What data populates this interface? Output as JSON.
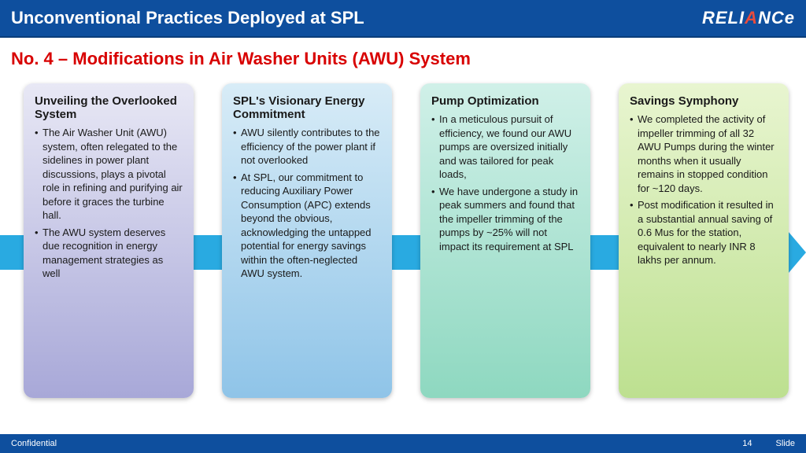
{
  "header": {
    "title": "Unconventional Practices Deployed at SPL",
    "logo_text_pre": "RELI",
    "logo_accent": "A",
    "logo_text_post": "NCe"
  },
  "subtitle": "No. 4 – Modifications in Air Washer Units (AWU) System",
  "cards": [
    {
      "title": "Unveiling the Overlooked System",
      "gradient_from": "#e8e8f5",
      "gradient_to": "#a8a8d8",
      "bullets": [
        "The Air Washer Unit (AWU) system, often relegated to the sidelines in power plant discussions, plays a pivotal role in refining and purifying air before it graces the turbine hall.",
        "The AWU system deserves due recognition in energy management strategies as well"
      ]
    },
    {
      "title": "SPL's Visionary Energy Commitment",
      "gradient_from": "#d8ecf7",
      "gradient_to": "#8fc4e8",
      "bullets": [
        "AWU silently contributes to the efficiency of the power plant if not overlooked",
        "At SPL, our commitment to reducing Auxiliary Power Consumption (APC) extends beyond the obvious, acknowledging the untapped potential for energy savings within the often-neglected AWU system."
      ]
    },
    {
      "title": "Pump Optimization",
      "gradient_from": "#d0f0e8",
      "gradient_to": "#8ed8c0",
      "bullets": [
        "In a meticulous pursuit of efficiency, we found our AWU pumps are oversized initially and was tailored for peak loads,",
        "We have undergone a study in peak summers and found that the impeller trimming of the pumps by ~25% will not impact its requirement at SPL"
      ]
    },
    {
      "title": "Savings Symphony",
      "gradient_from": "#e8f5d0",
      "gradient_to": "#bde090",
      "bullets": [
        "We completed the activity of impeller trimming of all 32 AWU Pumps during the winter months when it usually remains in stopped condition for ~120 days.",
        "Post modification it resulted in a substantial annual saving of 0.6 Mus for the station, equivalent to nearly INR 8 lakhs per annum."
      ]
    }
  ],
  "footer": {
    "left": "Confidential",
    "page_number": "14",
    "right": "Slide"
  },
  "arrow_color": "#29aae1"
}
